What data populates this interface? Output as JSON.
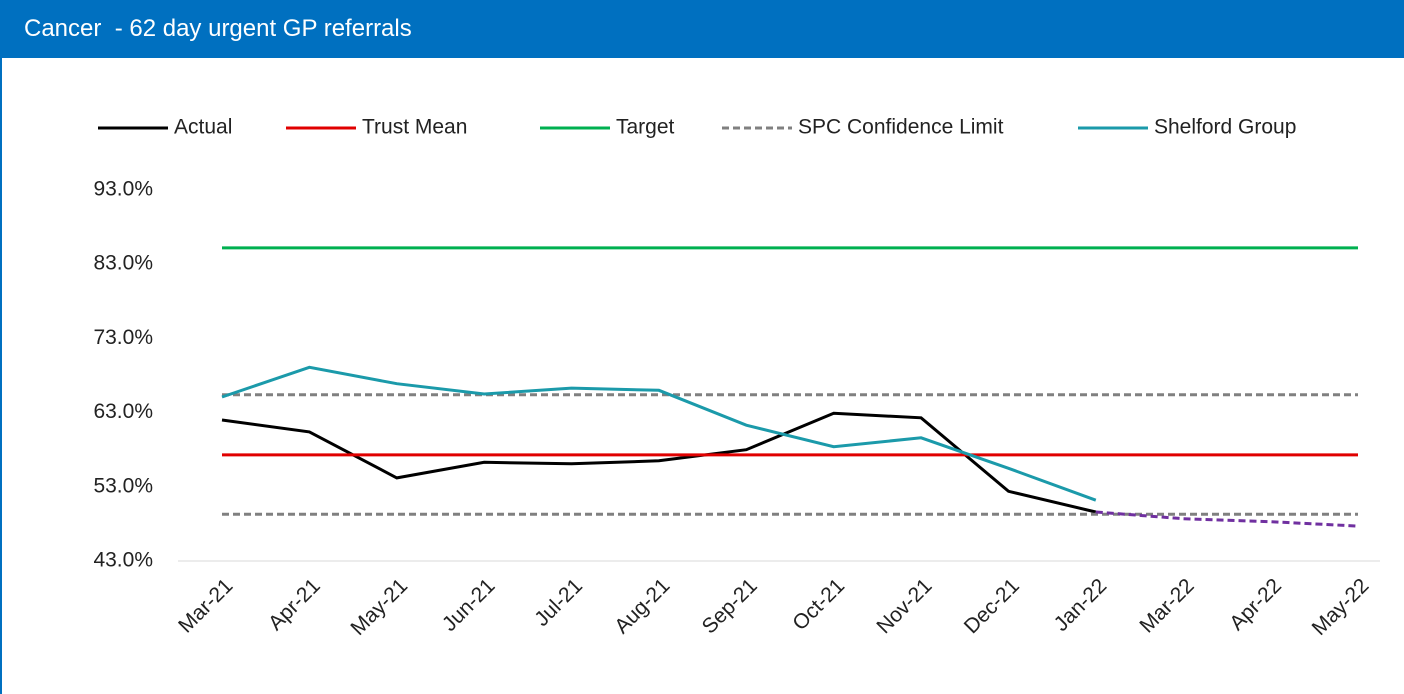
{
  "header": {
    "title": "Cancer  - 62 day urgent GP referrals"
  },
  "chart_data": {
    "type": "line",
    "categories": [
      "Mar-21",
      "Apr-21",
      "May-21",
      "Jun-21",
      "Jul-21",
      "Aug-21",
      "Sep-21",
      "Oct-21",
      "Nov-21",
      "Dec-21",
      "Jan-22",
      "Mar-22",
      "Apr-22",
      "May-22"
    ],
    "ylim": [
      43,
      93
    ],
    "yticks": [
      {
        "value": 43,
        "label": "43.0%"
      },
      {
        "value": 53,
        "label": "53.0%"
      },
      {
        "value": 63,
        "label": "63.0%"
      },
      {
        "value": 73,
        "label": "73.0%"
      },
      {
        "value": 83,
        "label": "83.0%"
      },
      {
        "value": 93,
        "label": "93.0%"
      }
    ],
    "series": [
      {
        "name": "Actual",
        "color": "#000000",
        "values": [
          62.0,
          60.4,
          54.2,
          56.3,
          56.1,
          56.5,
          58.0,
          62.9,
          62.3,
          52.4,
          49.6,
          null,
          null,
          null
        ]
      },
      {
        "name": "Trust Mean",
        "color": "#e00000",
        "values": [
          57.3,
          57.3,
          57.3,
          57.3,
          57.3,
          57.3,
          57.3,
          57.3,
          57.3,
          57.3,
          57.3,
          57.3,
          57.3,
          57.3
        ]
      },
      {
        "name": "Target",
        "color": "#00b050",
        "values": [
          85.2,
          85.2,
          85.2,
          85.2,
          85.2,
          85.2,
          85.2,
          85.2,
          85.2,
          85.2,
          85.2,
          85.2,
          85.2,
          85.2
        ]
      },
      {
        "name": "SPC Confidence Limit",
        "color": "#808080",
        "dashed": true,
        "values": [
          65.4,
          65.4,
          65.4,
          65.4,
          65.4,
          65.4,
          65.4,
          65.4,
          65.4,
          65.4,
          65.4,
          65.4,
          65.4,
          65.4
        ],
        "lower": [
          49.3,
          49.3,
          49.3,
          49.3,
          49.3,
          49.3,
          49.3,
          49.3,
          49.3,
          49.3,
          49.3,
          49.3,
          49.3,
          49.3
        ]
      },
      {
        "name": "Shelford Group",
        "color": "#1b9aaa",
        "values": [
          65.1,
          69.1,
          66.9,
          65.5,
          66.3,
          66.0,
          61.3,
          58.4,
          59.6,
          55.5,
          51.2,
          null,
          null,
          null
        ]
      },
      {
        "color": "#7030a0",
        "dashed": true,
        "values": [
          null,
          null,
          null,
          null,
          null,
          null,
          null,
          null,
          null,
          null,
          49.6,
          48.7,
          48.3,
          47.7
        ]
      }
    ]
  }
}
